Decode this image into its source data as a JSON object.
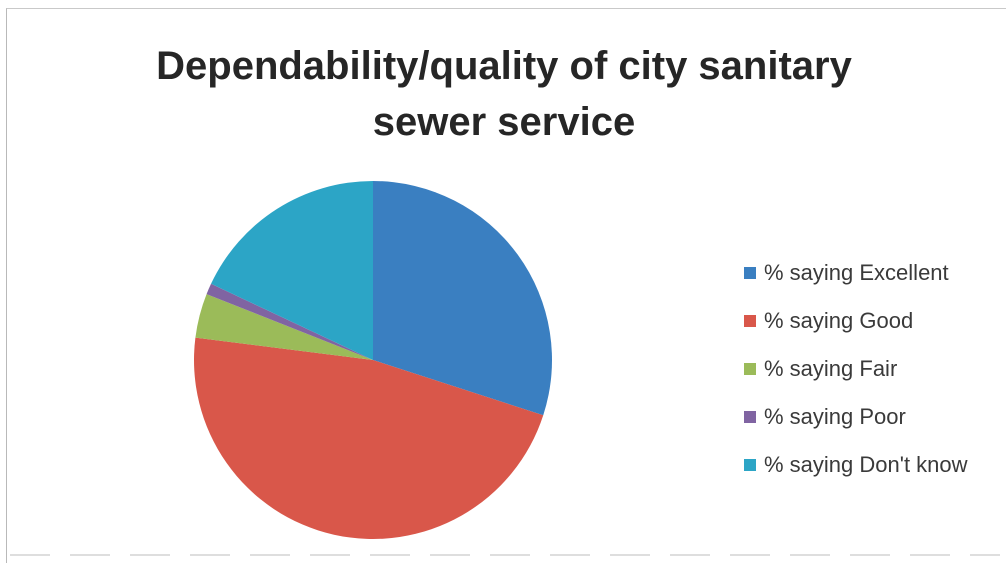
{
  "chart_data": {
    "type": "pie",
    "title_lines": [
      "Dependability/quality of city sanitary",
      "sewer service"
    ],
    "legend_position": "right",
    "slices": [
      {
        "label": "% saying Excellent",
        "value": 30,
        "color": "#3a7fc1"
      },
      {
        "label": "% saying Good",
        "value": 47,
        "color": "#d9574a"
      },
      {
        "label": "% saying Fair",
        "value": 4,
        "color": "#9bbb59"
      },
      {
        "label": "% saying Poor",
        "value": 1,
        "color": "#8064a2"
      },
      {
        "label": "% saying Don't know",
        "value": 18,
        "color": "#2ca5c6"
      }
    ]
  }
}
